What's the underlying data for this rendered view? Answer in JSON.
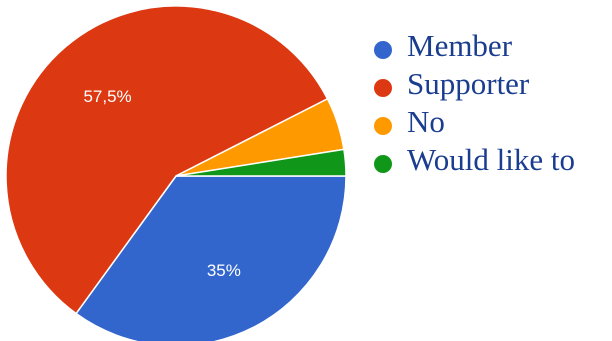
{
  "chart_data": {
    "type": "pie",
    "slices": [
      {
        "label": "Member",
        "value": 35,
        "color": "#3366cc",
        "data_label": "35%"
      },
      {
        "label": "Supporter",
        "value": 57.5,
        "color": "#dc3912",
        "data_label": "57,5%"
      },
      {
        "label": "No",
        "value": 5,
        "color": "#ff9900",
        "data_label": ""
      },
      {
        "label": "Would like to",
        "value": 2.5,
        "color": "#109618",
        "data_label": ""
      }
    ],
    "legend_placement": "right"
  }
}
